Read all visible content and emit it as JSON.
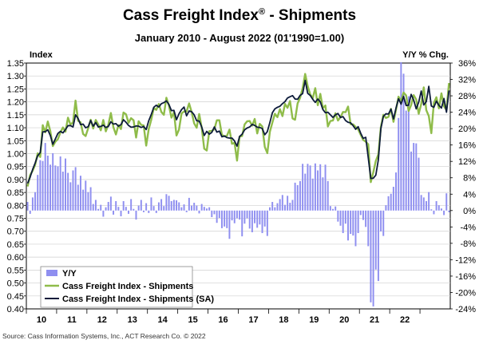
{
  "chart_data": {
    "type": "line",
    "title": "Cass Freight Index",
    "title_mark": "®",
    "title_suffix": " - Shipments",
    "subtitle": "January 2010 - August 2022 (01'1990=1.00)",
    "left_axis_label": "Index",
    "right_axis_label": "Y/Y % Chg.",
    "source": "Source: Cass Information Systems, Inc., ACT Research Co. © 2022",
    "x_tick_labels": [
      "10",
      "11",
      "12",
      "13",
      "14",
      "15",
      "16",
      "17",
      "18",
      "19",
      "20",
      "21",
      "22"
    ],
    "left_ylim": [
      0.4,
      1.35
    ],
    "left_ticks": [
      "0.40",
      "0.45",
      "0.50",
      "0.55",
      "0.60",
      "0.65",
      "0.70",
      "0.75",
      "0.80",
      "0.85",
      "0.90",
      "0.95",
      "1.00",
      "1.05",
      "1.10",
      "1.15",
      "1.20",
      "1.25",
      "1.30",
      "1.35"
    ],
    "right_ylim": [
      -24,
      36
    ],
    "right_ticks": [
      "36%",
      "32%",
      "28%",
      "24%",
      "20%",
      "16%",
      "12%",
      "8%",
      "4%",
      "0%",
      "-4%",
      "-8%",
      "-12%",
      "-16%",
      "-20%",
      "-24%"
    ],
    "grid": true,
    "legend_position": "bottom-left",
    "colors": {
      "yy": "#8f8ff0",
      "shipments": "#8fbc4a",
      "sa": "#0d1b3a"
    },
    "series": [
      {
        "name": "Y/Y",
        "axis": "right",
        "kind": "bar",
        "values": [
          2.1,
          -0.8,
          3.2,
          4.5,
          8.7,
          12.3,
          12.1,
          16.5,
          13.4,
          11.2,
          14.0,
          11.0,
          10.8,
          13.2,
          9.5,
          12.7,
          9.2,
          6.9,
          9.8,
          10.6,
          6.3,
          8.5,
          5.1,
          7.3,
          4.5,
          5.7,
          1.6,
          2.6,
          0.4,
          1.4,
          -1.5,
          0.8,
          2.1,
          3.4,
          -1.0,
          2.3,
          0.9,
          -1.4,
          2.3,
          0.9,
          -0.8,
          2.8,
          0.4,
          -2.2,
          1.2,
          2.6,
          -0.4,
          1.8,
          -0.6,
          3.2,
          1.1,
          -0.6,
          2.0,
          2.8,
          1.1,
          4.0,
          3.6,
          2.3,
          2.6,
          2.5,
          2.0,
          0.8,
          1.5,
          -0.4,
          3.1,
          1.2,
          1.9,
          1.2,
          -0.7,
          1.6,
          0.9,
          0.5,
          0.8,
          -1.6,
          -0.9,
          -3.0,
          -1.8,
          -4.3,
          -3.9,
          -4.3,
          -6.9,
          -2.4,
          -3.1,
          -1.9,
          -2.2,
          -6.3,
          -3.2,
          -1.9,
          -4.4,
          -5.3,
          -3.1,
          -4.2,
          -3.4,
          -5.5,
          -3.9,
          -6.2,
          0.8,
          2.1,
          0.8,
          1.8,
          2.8,
          3.8,
          1.4,
          3.6,
          1.9,
          2.6,
          6.8,
          6.2,
          7.2,
          11.4,
          9.0,
          11.4,
          11.0,
          7.8,
          11.5,
          9.8,
          11.3,
          8.1,
          11.2,
          7.2,
          1.1,
          0.4,
          1.0,
          -2.7,
          -3.7,
          -5.5,
          -3.2,
          -7.3,
          -5.7,
          -6.1,
          -8.7,
          -5.5,
          -1.1,
          -2.3,
          -4.0,
          -8.7,
          -22.4,
          -23.4,
          -14.4,
          -17.2,
          -5.1,
          -6.2,
          1.3,
          3.5,
          4.1,
          5.8,
          9.3,
          22.6,
          36.2,
          33.4,
          24.4,
          27.9,
          14.4,
          16.5,
          16.4,
          12.9,
          3.8,
          3.2,
          2.3,
          4.5,
          0.3,
          -0.9,
          2.3,
          1.3,
          0.5,
          -1.1,
          4.2,
          -0.4
        ]
      },
      {
        "name": "Cass Freight Index - Shipments",
        "axis": "left",
        "kind": "line",
        "values": [
          0.873,
          0.917,
          0.934,
          0.957,
          1.001,
          0.987,
          1.11,
          1.082,
          1.124,
          1.087,
          1.029,
          1.046,
          1.056,
          1.082,
          1.101,
          1.085,
          1.139,
          1.112,
          1.121,
          1.205,
          1.127,
          1.121,
          1.076,
          1.068,
          1.098,
          1.131,
          1.097,
          1.13,
          1.113,
          1.09,
          1.13,
          1.086,
          1.112,
          1.157,
          1.102,
          1.074,
          1.11,
          1.095,
          1.159,
          1.152,
          1.119,
          1.137,
          1.129,
          1.062,
          1.125,
          1.111,
          1.109,
          1.031,
          1.095,
          1.131,
          1.176,
          1.169,
          1.192,
          1.161,
          1.15,
          1.216,
          1.186,
          1.139,
          1.16,
          1.07,
          1.093,
          1.155,
          1.163,
          1.163,
          1.194,
          1.161,
          1.117,
          1.1,
          1.153,
          1.1,
          1.019,
          1.012,
          1.087,
          1.088,
          1.094,
          1.129,
          1.129,
          1.072,
          1.067,
          1.069,
          1.093,
          1.038,
          1.042,
          0.973,
          1.066,
          1.068,
          1.113,
          1.125,
          1.126,
          1.108,
          1.134,
          1.078,
          1.115,
          1.105,
          1.026,
          1.002,
          1.084,
          1.12,
          1.154,
          1.141,
          1.172,
          1.145,
          1.192,
          1.177,
          1.203,
          1.136,
          1.131,
          1.194,
          1.216,
          1.253,
          1.308,
          1.261,
          1.229,
          1.214,
          1.253,
          1.187,
          1.231,
          1.176,
          1.186,
          1.105,
          1.126,
          1.128,
          1.156,
          1.128,
          1.141,
          1.161,
          1.16,
          1.182,
          1.114,
          1.113,
          1.103,
          1.094,
          1.073,
          1.053,
          1.046,
          1.036,
          0.89,
          0.928,
          0.972,
          0.997,
          1.103,
          1.15,
          1.138,
          1.142,
          1.173,
          1.123,
          1.17,
          1.22,
          1.202,
          1.236,
          1.225,
          1.165,
          1.188,
          1.226,
          1.209,
          1.154,
          1.192,
          1.256,
          1.168,
          1.145,
          1.079,
          1.196,
          1.218,
          1.175,
          1.233,
          1.183,
          1.169,
          1.273
        ]
      },
      {
        "name": "Cass Freight Index - Shipments (SA)",
        "axis": "left",
        "kind": "line",
        "values": [
          0.885,
          0.909,
          0.939,
          0.964,
          0.992,
          1.004,
          1.084,
          1.085,
          1.092,
          1.07,
          1.036,
          1.057,
          1.078,
          1.086,
          1.08,
          1.093,
          1.108,
          1.108,
          1.103,
          1.15,
          1.136,
          1.112,
          1.114,
          1.1,
          1.104,
          1.128,
          1.106,
          1.12,
          1.103,
          1.105,
          1.11,
          1.101,
          1.105,
          1.123,
          1.114,
          1.116,
          1.106,
          1.112,
          1.131,
          1.121,
          1.109,
          1.102,
          1.103,
          1.107,
          1.106,
          1.101,
          1.105,
          1.093,
          1.127,
          1.151,
          1.179,
          1.187,
          1.18,
          1.193,
          1.197,
          1.204,
          1.19,
          1.166,
          1.167,
          1.131,
          1.154,
          1.17,
          1.18,
          1.146,
          1.165,
          1.162,
          1.15,
          1.127,
          1.126,
          1.103,
          1.07,
          1.086,
          1.075,
          1.082,
          1.103,
          1.083,
          1.087,
          1.065,
          1.068,
          1.062,
          1.06,
          1.06,
          1.049,
          1.029,
          1.066,
          1.075,
          1.092,
          1.099,
          1.103,
          1.113,
          1.109,
          1.102,
          1.101,
          1.097,
          1.073,
          1.085,
          1.12,
          1.158,
          1.173,
          1.179,
          1.183,
          1.193,
          1.201,
          1.215,
          1.22,
          1.224,
          1.211,
          1.21,
          1.225,
          1.232,
          1.283,
          1.233,
          1.225,
          1.21,
          1.198,
          1.211,
          1.2,
          1.171,
          1.158,
          1.16,
          1.15,
          1.14,
          1.15,
          1.155,
          1.14,
          1.143,
          1.128,
          1.121,
          1.119,
          1.108,
          1.094,
          1.104,
          1.079,
          1.059,
          1.063,
          0.984,
          0.904,
          0.905,
          0.917,
          0.976,
          1.097,
          1.144,
          1.154,
          1.153,
          1.172,
          1.134,
          1.176,
          1.212,
          1.191,
          1.221,
          1.186,
          1.187,
          1.229,
          1.207,
          1.173,
          1.199,
          1.242,
          1.188,
          1.201,
          1.26,
          1.184,
          1.179,
          1.203,
          1.187,
          1.176,
          1.213,
          1.16,
          1.244
        ]
      }
    ]
  }
}
